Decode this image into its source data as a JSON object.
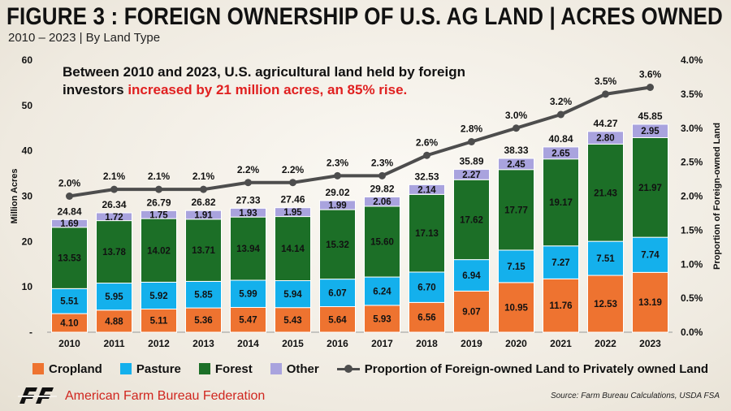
{
  "header": {
    "title": "FIGURE 3 : FOREIGN OWNERSHIP OF U.S. AG LAND | ACRES OWNED",
    "subtitle": "2010 – 2023 | By Land Type"
  },
  "callout": {
    "line1": "Between 2010 and 2023, U.S. agricultural land held by foreign",
    "line2_prefix": "investors ",
    "line2_highlight": "increased by 21 million acres, an 85% rise."
  },
  "legend": {
    "cropland": "Cropland",
    "pasture": "Pasture",
    "forest": "Forest",
    "other": "Other",
    "proportion": "Proportion of Foreign-owned Land to Privately owned Land"
  },
  "footer": {
    "brand": "American Farm Bureau Federation",
    "source": "Source: Farm Bureau Calculations, USDA FSA"
  },
  "colors": {
    "cropland": "#ee7330",
    "pasture": "#14b0ec",
    "forest": "#1c6f27",
    "other": "#a9a3de",
    "line": "#4d4d4d",
    "highlight": "#e02020",
    "brand": "#d0261f"
  },
  "icons": {
    "logo": "afbf-logo-icon"
  },
  "chart_data": {
    "type": "bar",
    "stacked": true,
    "categories": [
      "2010",
      "2011",
      "2012",
      "2013",
      "2014",
      "2015",
      "2016",
      "2017",
      "2018",
      "2019",
      "2020",
      "2021",
      "2022",
      "2023"
    ],
    "series": [
      {
        "name": "Cropland",
        "values": [
          4.1,
          4.88,
          5.11,
          5.36,
          5.47,
          5.43,
          5.64,
          5.93,
          6.56,
          9.07,
          10.95,
          11.76,
          12.53,
          13.19
        ]
      },
      {
        "name": "Pasture",
        "values": [
          5.51,
          5.95,
          5.92,
          5.85,
          5.99,
          5.94,
          6.07,
          6.24,
          6.7,
          6.94,
          7.15,
          7.27,
          7.51,
          7.74
        ]
      },
      {
        "name": "Forest",
        "values": [
          13.53,
          13.78,
          14.02,
          13.71,
          13.94,
          14.14,
          15.32,
          15.6,
          17.13,
          17.62,
          17.77,
          19.17,
          21.43,
          21.97
        ]
      },
      {
        "name": "Other",
        "values": [
          1.69,
          1.72,
          1.75,
          1.91,
          1.93,
          1.95,
          1.99,
          2.06,
          2.14,
          2.27,
          2.45,
          2.65,
          2.8,
          2.95
        ]
      }
    ],
    "totals": [
      "24.84",
      "26.34",
      "26.79",
      "26.82",
      "27.33",
      "27.46",
      "29.02",
      "29.82",
      "32.53",
      "35.89",
      "38.33",
      "40.84",
      "44.27",
      "45.85"
    ],
    "proportion": {
      "name": "Proportion of Foreign-owned Land to Privately owned Land",
      "type": "line",
      "values": [
        2.0,
        2.1,
        2.1,
        2.1,
        2.2,
        2.2,
        2.3,
        2.3,
        2.6,
        2.8,
        3.0,
        3.2,
        3.5,
        3.6
      ],
      "labels": [
        "2.0%",
        "2.1%",
        "2.1%",
        "2.1%",
        "2.2%",
        "2.2%",
        "2.3%",
        "2.3%",
        "2.6%",
        "2.8%",
        "3.0%",
        "3.2%",
        "3.5%",
        "3.6%"
      ]
    },
    "ylabel": "Million Acres",
    "y2label": "Proportion of Foreign-owned Land",
    "ylim": [
      0,
      60
    ],
    "y_ticks": [
      "-",
      "10",
      "20",
      "30",
      "40",
      "50",
      "60"
    ],
    "y2lim": [
      0,
      4.0
    ],
    "y2_ticks": [
      "0.0%",
      "0.5%",
      "1.0%",
      "1.5%",
      "2.0%",
      "2.5%",
      "3.0%",
      "3.5%",
      "4.0%"
    ],
    "legend_position": "bottom",
    "grid": false
  }
}
